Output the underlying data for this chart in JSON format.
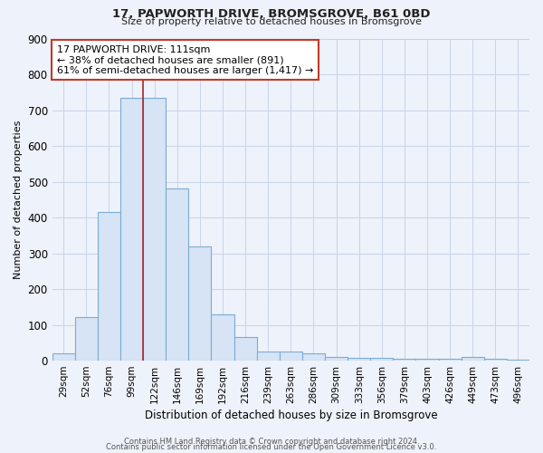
{
  "title": "17, PAPWORTH DRIVE, BROMSGROVE, B61 0BD",
  "subtitle": "Size of property relative to detached houses in Bromsgrove",
  "xlabel": "Distribution of detached houses by size in Bromsgrove",
  "ylabel": "Number of detached properties",
  "categories": [
    "29sqm",
    "52sqm",
    "76sqm",
    "99sqm",
    "122sqm",
    "146sqm",
    "169sqm",
    "192sqm",
    "216sqm",
    "239sqm",
    "263sqm",
    "286sqm",
    "309sqm",
    "333sqm",
    "356sqm",
    "379sqm",
    "403sqm",
    "426sqm",
    "449sqm",
    "473sqm",
    "496sqm"
  ],
  "values": [
    20,
    122,
    415,
    735,
    735,
    480,
    320,
    130,
    65,
    25,
    25,
    20,
    10,
    8,
    8,
    5,
    5,
    5,
    10,
    5,
    2
  ],
  "bar_color": "#d6e4f5",
  "bar_edge_color": "#7bacd4",
  "marker_index": 3,
  "marker_color": "#a0282a",
  "annotation_text": "17 PAPWORTH DRIVE: 111sqm\n← 38% of detached houses are smaller (891)\n61% of semi-detached houses are larger (1,417) →",
  "annotation_box_color": "#ffffff",
  "annotation_box_edge": "#c0392b",
  "ylim": [
    0,
    900
  ],
  "yticks": [
    0,
    100,
    200,
    300,
    400,
    500,
    600,
    700,
    800,
    900
  ],
  "footer1": "Contains HM Land Registry data © Crown copyright and database right 2024.",
  "footer2": "Contains public sector information licensed under the Open Government Licence v3.0.",
  "grid_color": "#c8d4e8",
  "background_color": "#eef2fa"
}
